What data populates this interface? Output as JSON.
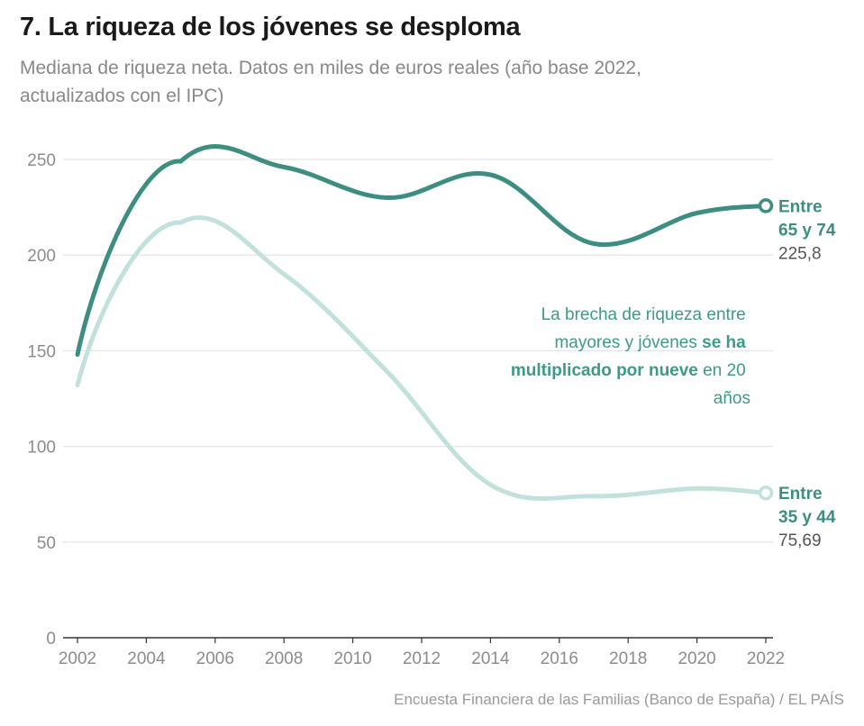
{
  "header": {
    "title": "7. La riqueza de los jóvenes se desploma",
    "subtitle": "Mediana de riqueza neta. Datos en miles de euros reales (año base 2022, actualizados con el IPC)"
  },
  "footer": {
    "source": "Encuesta Financiera de las Familias (Banco de España) / EL PAÍS"
  },
  "colors": {
    "series_dark": "#3d8e80",
    "series_light": "#c3e1dc",
    "annotation": "#3d9a88",
    "grid": "#e5e5e5",
    "axis_text": "#8c8c8c",
    "value_text": "#555555"
  },
  "annotation": {
    "line1": "La brecha de riqueza entre",
    "line2_normal": "mayores y jóvenes ",
    "line2_bold": "se ha",
    "line3_bold": "multiplicado por nueve",
    "line3_normal": " en 20",
    "line4": "años"
  },
  "chart_data": {
    "type": "line",
    "x_ticks": [
      2002,
      2004,
      2006,
      2008,
      2010,
      2012,
      2014,
      2016,
      2018,
      2020,
      2022
    ],
    "y_ticks": [
      0,
      50,
      100,
      150,
      200,
      250
    ],
    "xlim": [
      2002,
      2022
    ],
    "ylim": [
      0,
      250
    ],
    "grid": true,
    "series": [
      {
        "name": "Entre 65 y 74",
        "label_line1": "Entre",
        "label_line2": "65 y 74",
        "end_value": "225,8",
        "color": "#3d8e80",
        "x": [
          2002,
          2005,
          2008,
          2011,
          2014,
          2017,
          2020,
          2022
        ],
        "y": [
          148,
          249,
          246,
          230,
          242,
          206,
          222,
          225.8
        ]
      },
      {
        "name": "Entre 35 y 44",
        "label_line1": "Entre",
        "label_line2": "35 y 44",
        "end_value": "75,69",
        "color": "#c3e1dc",
        "x": [
          2002,
          2005,
          2008,
          2011,
          2014,
          2017,
          2020,
          2022
        ],
        "y": [
          132,
          217,
          190,
          139,
          80,
          74,
          78,
          75.69
        ]
      }
    ]
  }
}
